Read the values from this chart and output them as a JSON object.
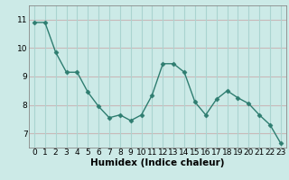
{
  "x": [
    0,
    1,
    2,
    3,
    4,
    5,
    6,
    7,
    8,
    9,
    10,
    11,
    12,
    13,
    14,
    15,
    16,
    17,
    18,
    19,
    20,
    21,
    22,
    23
  ],
  "y": [
    10.9,
    10.9,
    9.85,
    9.15,
    9.15,
    8.45,
    7.95,
    7.55,
    7.65,
    7.45,
    7.65,
    8.35,
    9.45,
    9.45,
    9.15,
    8.1,
    7.65,
    8.2,
    8.5,
    8.25,
    8.05,
    7.65,
    7.3,
    6.65
  ],
  "line_color": "#2e7d70",
  "marker": "D",
  "marker_size": 2.5,
  "bg_color": "#cceae7",
  "plot_bg_color": "#cceae7",
  "hgrid_color": "#c9b8b8",
  "vgrid_color": "#aad4d0",
  "xlabel": "Humidex (Indice chaleur)",
  "xlim": [
    -0.5,
    23.5
  ],
  "ylim": [
    6.5,
    11.5
  ],
  "yticks": [
    7,
    8,
    9,
    10,
    11
  ],
  "xticks": [
    0,
    1,
    2,
    3,
    4,
    5,
    6,
    7,
    8,
    9,
    10,
    11,
    12,
    13,
    14,
    15,
    16,
    17,
    18,
    19,
    20,
    21,
    22,
    23
  ],
  "tick_fontsize": 6.5,
  "xlabel_fontsize": 7.5,
  "line_width": 1.0
}
